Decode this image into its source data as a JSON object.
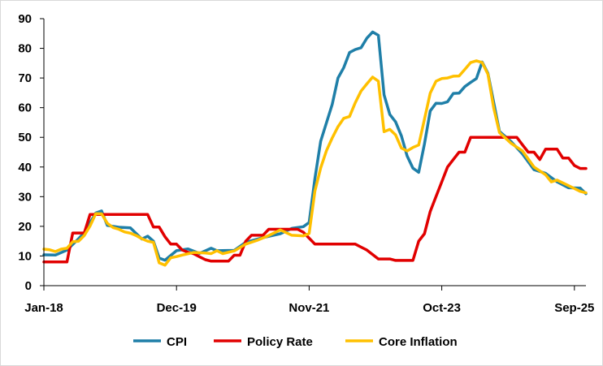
{
  "chart_data": {
    "type": "line",
    "title": "",
    "xlabel": "",
    "ylabel": "",
    "ylim": [
      0,
      90
    ],
    "yticks": [
      0,
      10,
      20,
      30,
      40,
      50,
      60,
      70,
      80,
      90
    ],
    "x_tick_labels": [
      "Jan-18",
      "Dec-19",
      "Nov-21",
      "Oct-23",
      "Sep-25"
    ],
    "grid": false,
    "legend_position": "bottom",
    "series": [
      {
        "name": "CPI",
        "color": "#1f7fa8",
        "points": [
          [
            "2018-01",
            10.4
          ],
          [
            "2018-03",
            10.3
          ],
          [
            "2018-05",
            12.0
          ],
          [
            "2018-07",
            15.8
          ],
          [
            "2018-08",
            17.9
          ],
          [
            "2018-10",
            24.5
          ],
          [
            "2018-11",
            25.2
          ],
          [
            "2018-12",
            20.3
          ],
          [
            "2019-02",
            19.7
          ],
          [
            "2019-04",
            19.5
          ],
          [
            "2019-06",
            15.7
          ],
          [
            "2019-07",
            16.7
          ],
          [
            "2019-08",
            15.0
          ],
          [
            "2019-09",
            9.3
          ],
          [
            "2019-10",
            8.6
          ],
          [
            "2019-12",
            11.8
          ],
          [
            "2020-02",
            12.4
          ],
          [
            "2020-04",
            10.9
          ],
          [
            "2020-06",
            12.6
          ],
          [
            "2020-07",
            11.8
          ],
          [
            "2020-10",
            11.9
          ],
          [
            "2020-12",
            14.6
          ],
          [
            "2021-03",
            16.2
          ],
          [
            "2021-06",
            17.5
          ],
          [
            "2021-08",
            19.3
          ],
          [
            "2021-10",
            19.9
          ],
          [
            "2021-11",
            21.3
          ],
          [
            "2021-12",
            36.1
          ],
          [
            "2022-01",
            48.7
          ],
          [
            "2022-03",
            61.1
          ],
          [
            "2022-04",
            70.0
          ],
          [
            "2022-05",
            73.5
          ],
          [
            "2022-06",
            78.6
          ],
          [
            "2022-07",
            79.6
          ],
          [
            "2022-08",
            80.2
          ],
          [
            "2022-09",
            83.4
          ],
          [
            "2022-10",
            85.5
          ],
          [
            "2022-11",
            84.4
          ],
          [
            "2022-12",
            64.3
          ],
          [
            "2023-01",
            57.7
          ],
          [
            "2023-02",
            55.2
          ],
          [
            "2023-03",
            50.5
          ],
          [
            "2023-04",
            43.7
          ],
          [
            "2023-05",
            39.6
          ],
          [
            "2023-06",
            38.2
          ],
          [
            "2023-07",
            47.8
          ],
          [
            "2023-08",
            58.9
          ],
          [
            "2023-09",
            61.5
          ],
          [
            "2023-10",
            61.4
          ],
          [
            "2023-11",
            62.0
          ],
          [
            "2023-12",
            64.8
          ],
          [
            "2024-01",
            64.9
          ],
          [
            "2024-02",
            67.1
          ],
          [
            "2024-03",
            68.5
          ],
          [
            "2024-04",
            69.8
          ],
          [
            "2024-05",
            75.4
          ],
          [
            "2024-06",
            71.6
          ],
          [
            "2024-07",
            61.8
          ],
          [
            "2024-08",
            52.0
          ],
          [
            "2024-10",
            48.6
          ],
          [
            "2024-12",
            44.4
          ],
          [
            "2025-02",
            39.1
          ],
          [
            "2025-04",
            37.9
          ],
          [
            "2025-06",
            35.0
          ],
          [
            "2025-08",
            33.0
          ],
          [
            "2025-10",
            32.9
          ],
          [
            "2025-11",
            31.0
          ]
        ]
      },
      {
        "name": "Policy Rate",
        "color": "#e10000",
        "points": [
          [
            "2018-01",
            8.0
          ],
          [
            "2018-05",
            8.0
          ],
          [
            "2018-06",
            17.75
          ],
          [
            "2018-08",
            17.75
          ],
          [
            "2018-09",
            24.0
          ],
          [
            "2019-07",
            24.0
          ],
          [
            "2019-08",
            19.75
          ],
          [
            "2019-09",
            19.75
          ],
          [
            "2019-10",
            16.5
          ],
          [
            "2019-11",
            14.0
          ],
          [
            "2019-12",
            14.0
          ],
          [
            "2020-01",
            12.0
          ],
          [
            "2020-02",
            11.25
          ],
          [
            "2020-03",
            10.75
          ],
          [
            "2020-04",
            9.75
          ],
          [
            "2020-05",
            8.75
          ],
          [
            "2020-06",
            8.25
          ],
          [
            "2020-09",
            8.25
          ],
          [
            "2020-10",
            10.25
          ],
          [
            "2020-11",
            10.25
          ],
          [
            "2020-12",
            15.0
          ],
          [
            "2021-01",
            17.0
          ],
          [
            "2021-03",
            17.0
          ],
          [
            "2021-04",
            19.0
          ],
          [
            "2021-09",
            19.0
          ],
          [
            "2021-10",
            18.0
          ],
          [
            "2021-11",
            16.0
          ],
          [
            "2021-12",
            14.0
          ],
          [
            "2022-07",
            14.0
          ],
          [
            "2022-08",
            13.0
          ],
          [
            "2022-09",
            12.0
          ],
          [
            "2022-10",
            10.5
          ],
          [
            "2022-11",
            9.0
          ],
          [
            "2023-01",
            9.0
          ],
          [
            "2023-02",
            8.5
          ],
          [
            "2023-05",
            8.5
          ],
          [
            "2023-06",
            15.0
          ],
          [
            "2023-07",
            17.5
          ],
          [
            "2023-08",
            25.0
          ],
          [
            "2023-09",
            30.0
          ],
          [
            "2023-10",
            35.0
          ],
          [
            "2023-11",
            40.0
          ],
          [
            "2023-12",
            42.5
          ],
          [
            "2024-01",
            45.0
          ],
          [
            "2024-02",
            45.0
          ],
          [
            "2024-03",
            50.0
          ],
          [
            "2024-11",
            50.0
          ],
          [
            "2024-12",
            47.5
          ],
          [
            "2025-01",
            45.0
          ],
          [
            "2025-02",
            45.0
          ],
          [
            "2025-03",
            42.5
          ],
          [
            "2025-04",
            46.0
          ],
          [
            "2025-06",
            46.0
          ],
          [
            "2025-07",
            43.0
          ],
          [
            "2025-08",
            43.0
          ],
          [
            "2025-09",
            40.5
          ],
          [
            "2025-10",
            39.5
          ],
          [
            "2025-11",
            39.5
          ]
        ]
      },
      {
        "name": "Core Inflation",
        "color": "#ffc000",
        "points": [
          [
            "2018-01",
            12.3
          ],
          [
            "2018-02",
            12.1
          ],
          [
            "2018-03",
            11.5
          ],
          [
            "2018-04",
            12.3
          ],
          [
            "2018-05",
            12.6
          ],
          [
            "2018-06",
            14.8
          ],
          [
            "2018-07",
            15.0
          ],
          [
            "2018-08",
            16.9
          ],
          [
            "2018-09",
            20.1
          ],
          [
            "2018-10",
            24.3
          ],
          [
            "2018-11",
            24.2
          ],
          [
            "2018-12",
            21.0
          ],
          [
            "2019-01",
            19.6
          ],
          [
            "2019-02",
            19.0
          ],
          [
            "2019-03",
            18.1
          ],
          [
            "2019-04",
            17.7
          ],
          [
            "2019-05",
            16.9
          ],
          [
            "2019-06",
            15.8
          ],
          [
            "2019-07",
            15.0
          ],
          [
            "2019-08",
            14.6
          ],
          [
            "2019-09",
            7.7
          ],
          [
            "2019-10",
            6.9
          ],
          [
            "2019-11",
            9.4
          ],
          [
            "2019-12",
            9.8
          ],
          [
            "2020-01",
            10.3
          ],
          [
            "2020-03",
            11.2
          ],
          [
            "2020-05",
            11.0
          ],
          [
            "2020-06",
            10.8
          ],
          [
            "2020-07",
            11.8
          ],
          [
            "2020-08",
            10.8
          ],
          [
            "2020-10",
            11.7
          ],
          [
            "2020-12",
            14.0
          ],
          [
            "2021-02",
            15.3
          ],
          [
            "2021-04",
            16.9
          ],
          [
            "2021-06",
            18.8
          ],
          [
            "2021-08",
            17.0
          ],
          [
            "2021-10",
            16.8
          ],
          [
            "2021-11",
            17.6
          ],
          [
            "2021-12",
            31.9
          ],
          [
            "2022-01",
            39.7
          ],
          [
            "2022-02",
            45.5
          ],
          [
            "2022-03",
            49.8
          ],
          [
            "2022-04",
            53.6
          ],
          [
            "2022-05",
            56.4
          ],
          [
            "2022-06",
            57.0
          ],
          [
            "2022-07",
            61.7
          ],
          [
            "2022-08",
            65.6
          ],
          [
            "2022-09",
            68.0
          ],
          [
            "2022-10",
            70.3
          ],
          [
            "2022-11",
            68.9
          ],
          [
            "2022-12",
            51.9
          ],
          [
            "2023-01",
            52.7
          ],
          [
            "2023-02",
            50.8
          ],
          [
            "2023-03",
            46.4
          ],
          [
            "2023-04",
            45.4
          ],
          [
            "2023-05",
            46.6
          ],
          [
            "2023-06",
            47.4
          ],
          [
            "2023-07",
            56.1
          ],
          [
            "2023-08",
            64.9
          ],
          [
            "2023-09",
            68.9
          ],
          [
            "2023-10",
            69.8
          ],
          [
            "2023-11",
            70.0
          ],
          [
            "2023-12",
            70.6
          ],
          [
            "2024-01",
            70.7
          ],
          [
            "2024-02",
            72.9
          ],
          [
            "2024-03",
            75.2
          ],
          [
            "2024-04",
            75.8
          ],
          [
            "2024-05",
            75.2
          ],
          [
            "2024-06",
            71.3
          ],
          [
            "2024-07",
            59.9
          ],
          [
            "2024-08",
            51.6
          ],
          [
            "2024-10",
            48.0
          ],
          [
            "2024-12",
            45.4
          ],
          [
            "2025-02",
            40.0
          ],
          [
            "2025-04",
            37.4
          ],
          [
            "2025-05",
            35.0
          ],
          [
            "2025-06",
            35.6
          ],
          [
            "2025-08",
            33.7
          ],
          [
            "2025-10",
            31.8
          ],
          [
            "2025-11",
            31.3
          ]
        ]
      }
    ]
  }
}
